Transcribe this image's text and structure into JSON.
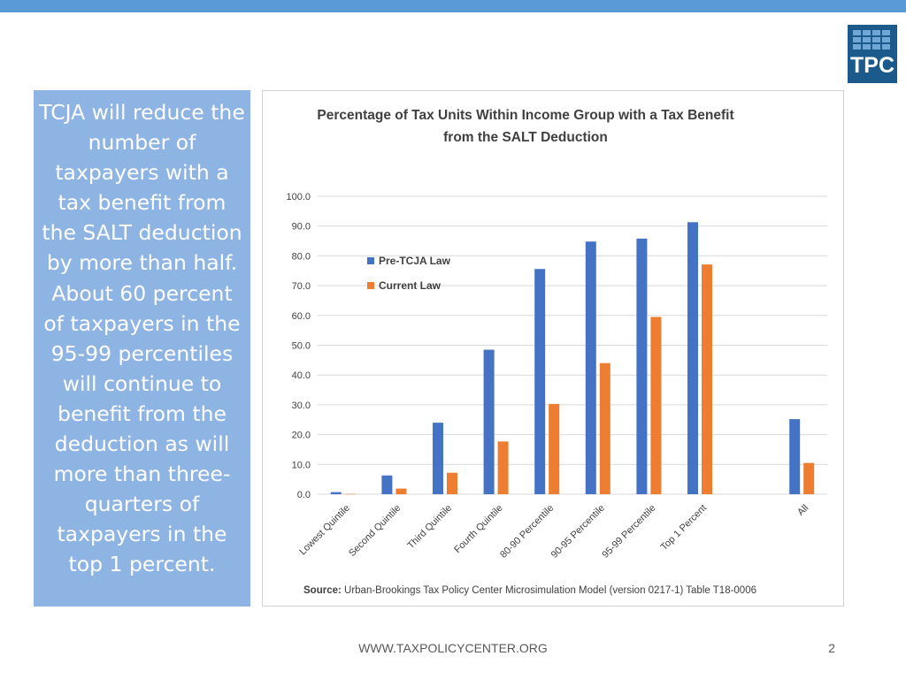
{
  "slide": {
    "sidebar_text": "TCJA will reduce the number of taxpayers with a tax benefit from the SALT deduction by more than half. About 60 percent of taxpayers in the 95-99 percentiles will continue to benefit from the deduction as will more than three-quarters of taxpayers in the top 1 percent.",
    "logo_text": "TPC",
    "footer_url": "WWW.TAXPOLICYCENTER.ORG",
    "page_number": "2",
    "source_label": "Source:",
    "source_text": " Urban-Brookings Tax Policy Center Microsimulation Model (version 0217-1) Table T18-0006"
  },
  "colors": {
    "top_bar": "#5b9bd5",
    "sidebar": "#8eb4e3",
    "logo": "#1d5a8c",
    "series_pre": "#4472c4",
    "series_current": "#ed7d31"
  },
  "chart_data": {
    "type": "bar",
    "title": [
      "Percentage of Tax Units Within Income Group with a Tax Benefit",
      "from the SALT Deduction"
    ],
    "xlabel": "",
    "ylabel": "",
    "ylim": [
      0,
      100
    ],
    "yticks": [
      "0.0",
      "10.0",
      "20.0",
      "30.0",
      "40.0",
      "50.0",
      "60.0",
      "70.0",
      "80.0",
      "90.0",
      "100.0"
    ],
    "grid": true,
    "legend_position": "top-left",
    "categories": [
      "Lowest Quintile",
      "Second Quintile",
      "Third Quintile",
      "Fourth Quintile",
      "80-90 Percentile",
      "90-95 Percentile",
      "95-99 Percentile",
      "Top 1 Percent",
      "",
      "All"
    ],
    "series": [
      {
        "name": "Pre-TCJA Law",
        "color": "#4472c4",
        "values": [
          0.7,
          6.3,
          24.0,
          48.5,
          75.6,
          84.8,
          85.8,
          91.3,
          null,
          25.2
        ]
      },
      {
        "name": "Current Law",
        "color": "#ed7d31",
        "values": [
          0.1,
          1.9,
          7.2,
          17.7,
          30.3,
          44.0,
          59.5,
          77.1,
          null,
          10.5
        ]
      }
    ]
  }
}
